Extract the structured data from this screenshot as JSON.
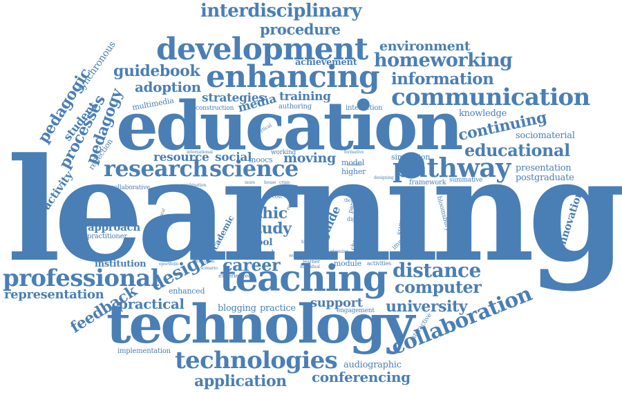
{
  "colors": {
    "word": "#4a7fb5",
    "background": "#ffffff"
  },
  "words": {
    "learning": "learning",
    "education": "education",
    "technology": "technology",
    "teaching": "teaching",
    "enhancing": "enhancing",
    "development": "development",
    "communication": "communication",
    "research": "research",
    "science": "science",
    "pathway": "pathway",
    "professional": "professional",
    "technologies": "technologies",
    "collaboration": "collaboration",
    "interdisciplinary": "interdisciplinary",
    "procedure": "procedure",
    "environment": "environment",
    "homeworking": "homeworking",
    "information": "information",
    "guidebook": "guidebook",
    "adoption": "adoption",
    "strategies": "strategies",
    "training": "training",
    "media": "media",
    "achievement": "achievement",
    "multimedia": "multimedia",
    "pedagogic": "pedagogic",
    "synchronous": "synchronous",
    "student": "student",
    "processes": "processes",
    "pedagogy": "pedagogy",
    "continuing": "continuing",
    "educational": "educational",
    "knowledge": "knowledge",
    "sociomaterial": "sociomaterial",
    "resource": "resource",
    "social": "social",
    "moocs": "moocs",
    "moving": "moving",
    "model": "model",
    "higher": "higher",
    "simulation": "simulation",
    "presentation": "presentation",
    "postgraduate": "postgraduate",
    "framework": "framework",
    "summative": "summative",
    "activity": "activity",
    "reflection": "reflection",
    "approach": "approach",
    "practitioner": "practitioner",
    "ethic": "ethic",
    "study": "study",
    "case": "case",
    "guide": "guide",
    "tool": "tool",
    "method": "method",
    "career": "career",
    "design": "design",
    "distance": "distance",
    "computer": "computer",
    "university": "university",
    "institution": "institution",
    "representation": "representation",
    "feedback": "feedback",
    "enhanced": "enhanced",
    "practical": "practical",
    "blogging": "blogging",
    "practice": "practice",
    "support": "support",
    "engagement": "engagement",
    "module": "module",
    "activities": "activities",
    "interactive": "interactive",
    "implementation": "implementation",
    "application": "application",
    "conferencing": "conferencing",
    "audiographic": "audiographic",
    "innovation": "innovation",
    "bloomsbury": "bloomsbury",
    "supporting": "supporting",
    "experience": "experience",
    "immersive": "immersive",
    "changing": "changing",
    "paper": "paper",
    "digital": "digital",
    "visual": "visual",
    "authoring": "authoring",
    "interaction": "interaction",
    "construction": "construction",
    "analytical": "analytical",
    "working": "working",
    "academic": "academic",
    "discussion": "discussion",
    "uptake": "uptake",
    "spread": "spread",
    "critical": "critical",
    "experienced": "experienced",
    "collaborative": "collaborative",
    "london": "london",
    "cost": "cost",
    "review": "review",
    "national": "national",
    "learner": "learner",
    "teacher": "teacher",
    "formative": "formative",
    "designing": "designing",
    "gamer": "gamer",
    "theme": "theme",
    "mode": "mode",
    "eportfolio": "eportfolio",
    "curriculum": "curriculum",
    "scenario": "scenario",
    "combination": "combination",
    "international": "international",
    "house": "house",
    "crisis": "crisis",
    "individual": "individual",
    "pedagogical": "pedagogical",
    "project": "project",
    "webinar": "webinar",
    "community": "community",
    "planning": "planning",
    "trend": "trend",
    "bitter": "bitter",
    "more": "more"
  }
}
